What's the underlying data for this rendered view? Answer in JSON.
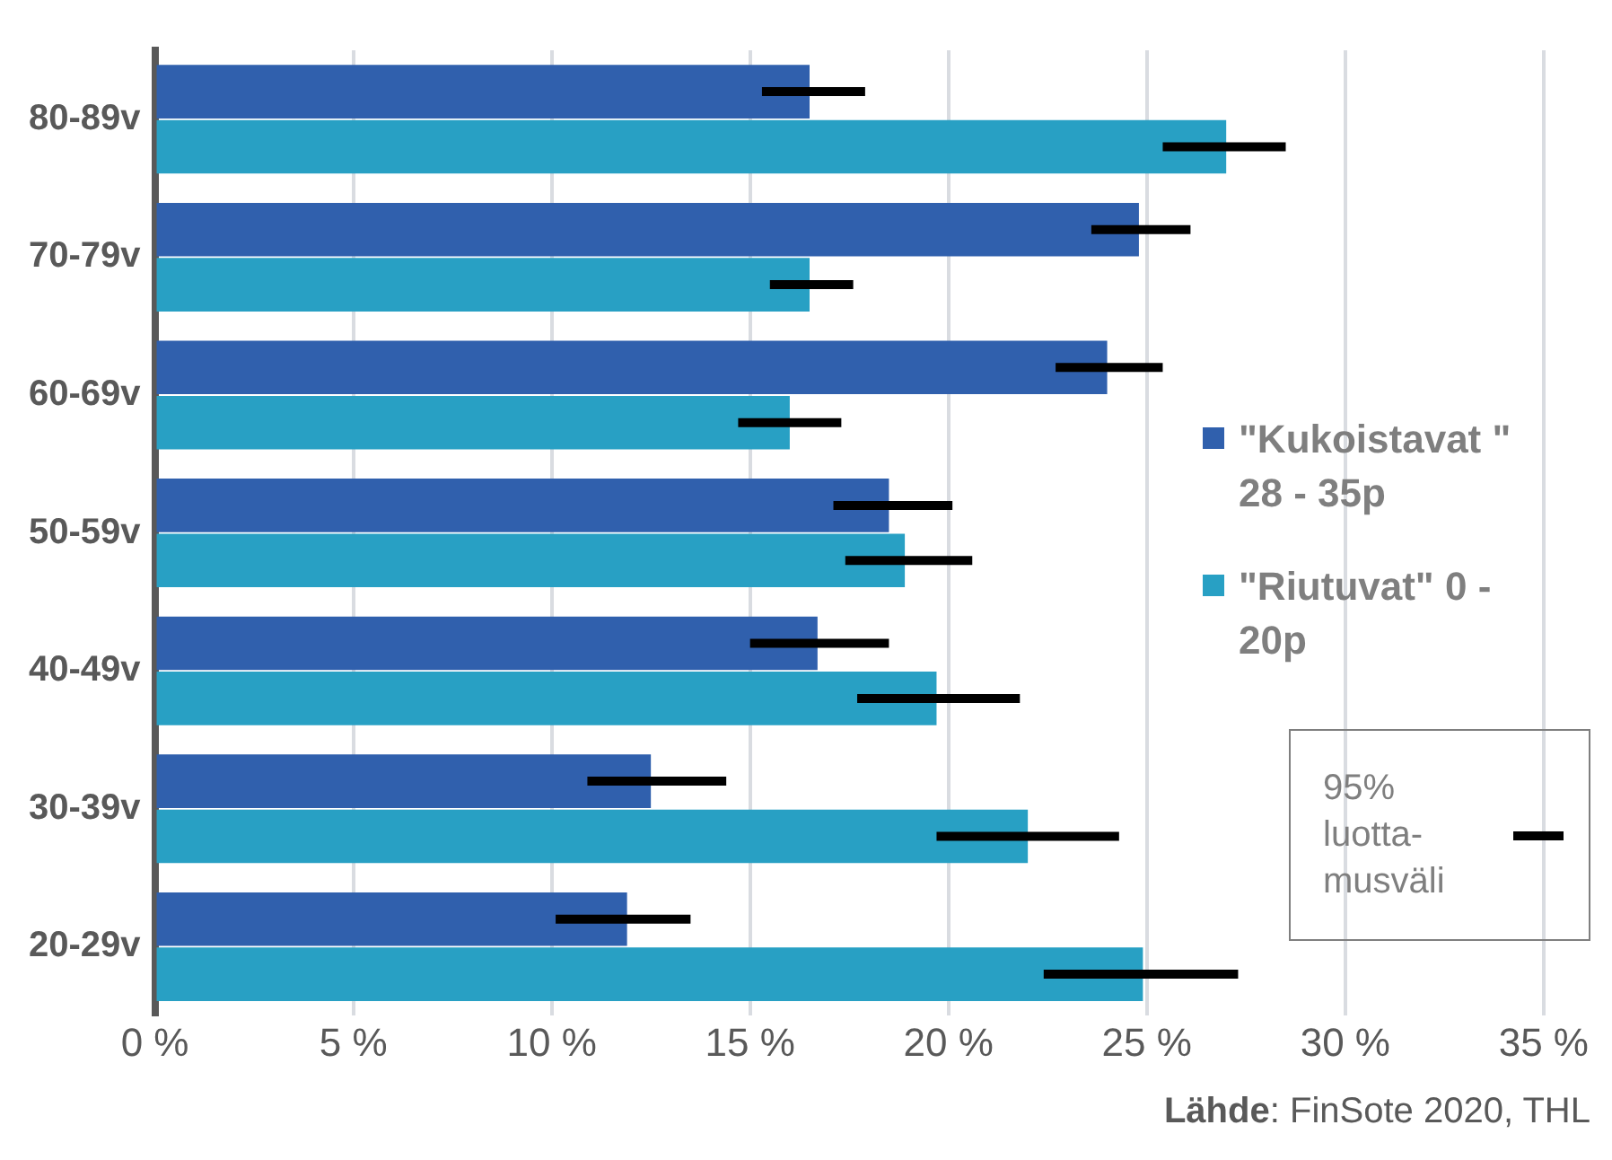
{
  "chart_data": {
    "type": "bar",
    "orientation": "horizontal",
    "categories": [
      "80-89v",
      "70-79v",
      "60-69v",
      "50-59v",
      "40-49v",
      "30-39v",
      "20-29v"
    ],
    "series": [
      {
        "name": "\"Kukoistavat \" 28 - 35p",
        "color": "#3060ad",
        "values": [
          16.5,
          24.8,
          24.0,
          18.5,
          16.7,
          12.5,
          11.9
        ],
        "errors": [
          [
            15.3,
            17.9
          ],
          [
            23.6,
            26.1
          ],
          [
            22.7,
            25.4
          ],
          [
            17.1,
            20.1
          ],
          [
            15.0,
            18.5
          ],
          [
            10.9,
            14.4
          ],
          [
            10.1,
            13.5
          ]
        ]
      },
      {
        "name": "\"Riutuvat\" 0 - 20p",
        "color": "#28a0c4",
        "values": [
          27.0,
          16.5,
          16.0,
          18.9,
          19.7,
          22.0,
          24.9
        ],
        "errors": [
          [
            25.4,
            28.5
          ],
          [
            15.5,
            17.6
          ],
          [
            14.7,
            17.3
          ],
          [
            17.4,
            20.6
          ],
          [
            17.7,
            21.8
          ],
          [
            19.7,
            24.3
          ],
          [
            22.4,
            27.3
          ]
        ]
      }
    ],
    "xlim": [
      0,
      35
    ],
    "xticks": [
      {
        "value": 0,
        "label": "0 %"
      },
      {
        "value": 5,
        "label": "5 %"
      },
      {
        "value": 10,
        "label": "10 %"
      },
      {
        "value": 15,
        "label": "15 %"
      },
      {
        "value": 20,
        "label": "20 %"
      },
      {
        "value": 25,
        "label": "25 %"
      },
      {
        "value": 30,
        "label": "30 %"
      },
      {
        "value": 35,
        "label": "35 %"
      }
    ],
    "grid": "x",
    "legend": "right",
    "annotations": [
      "95% luotta-musväli",
      "Lähde: FinSote 2020, THL"
    ]
  }
}
